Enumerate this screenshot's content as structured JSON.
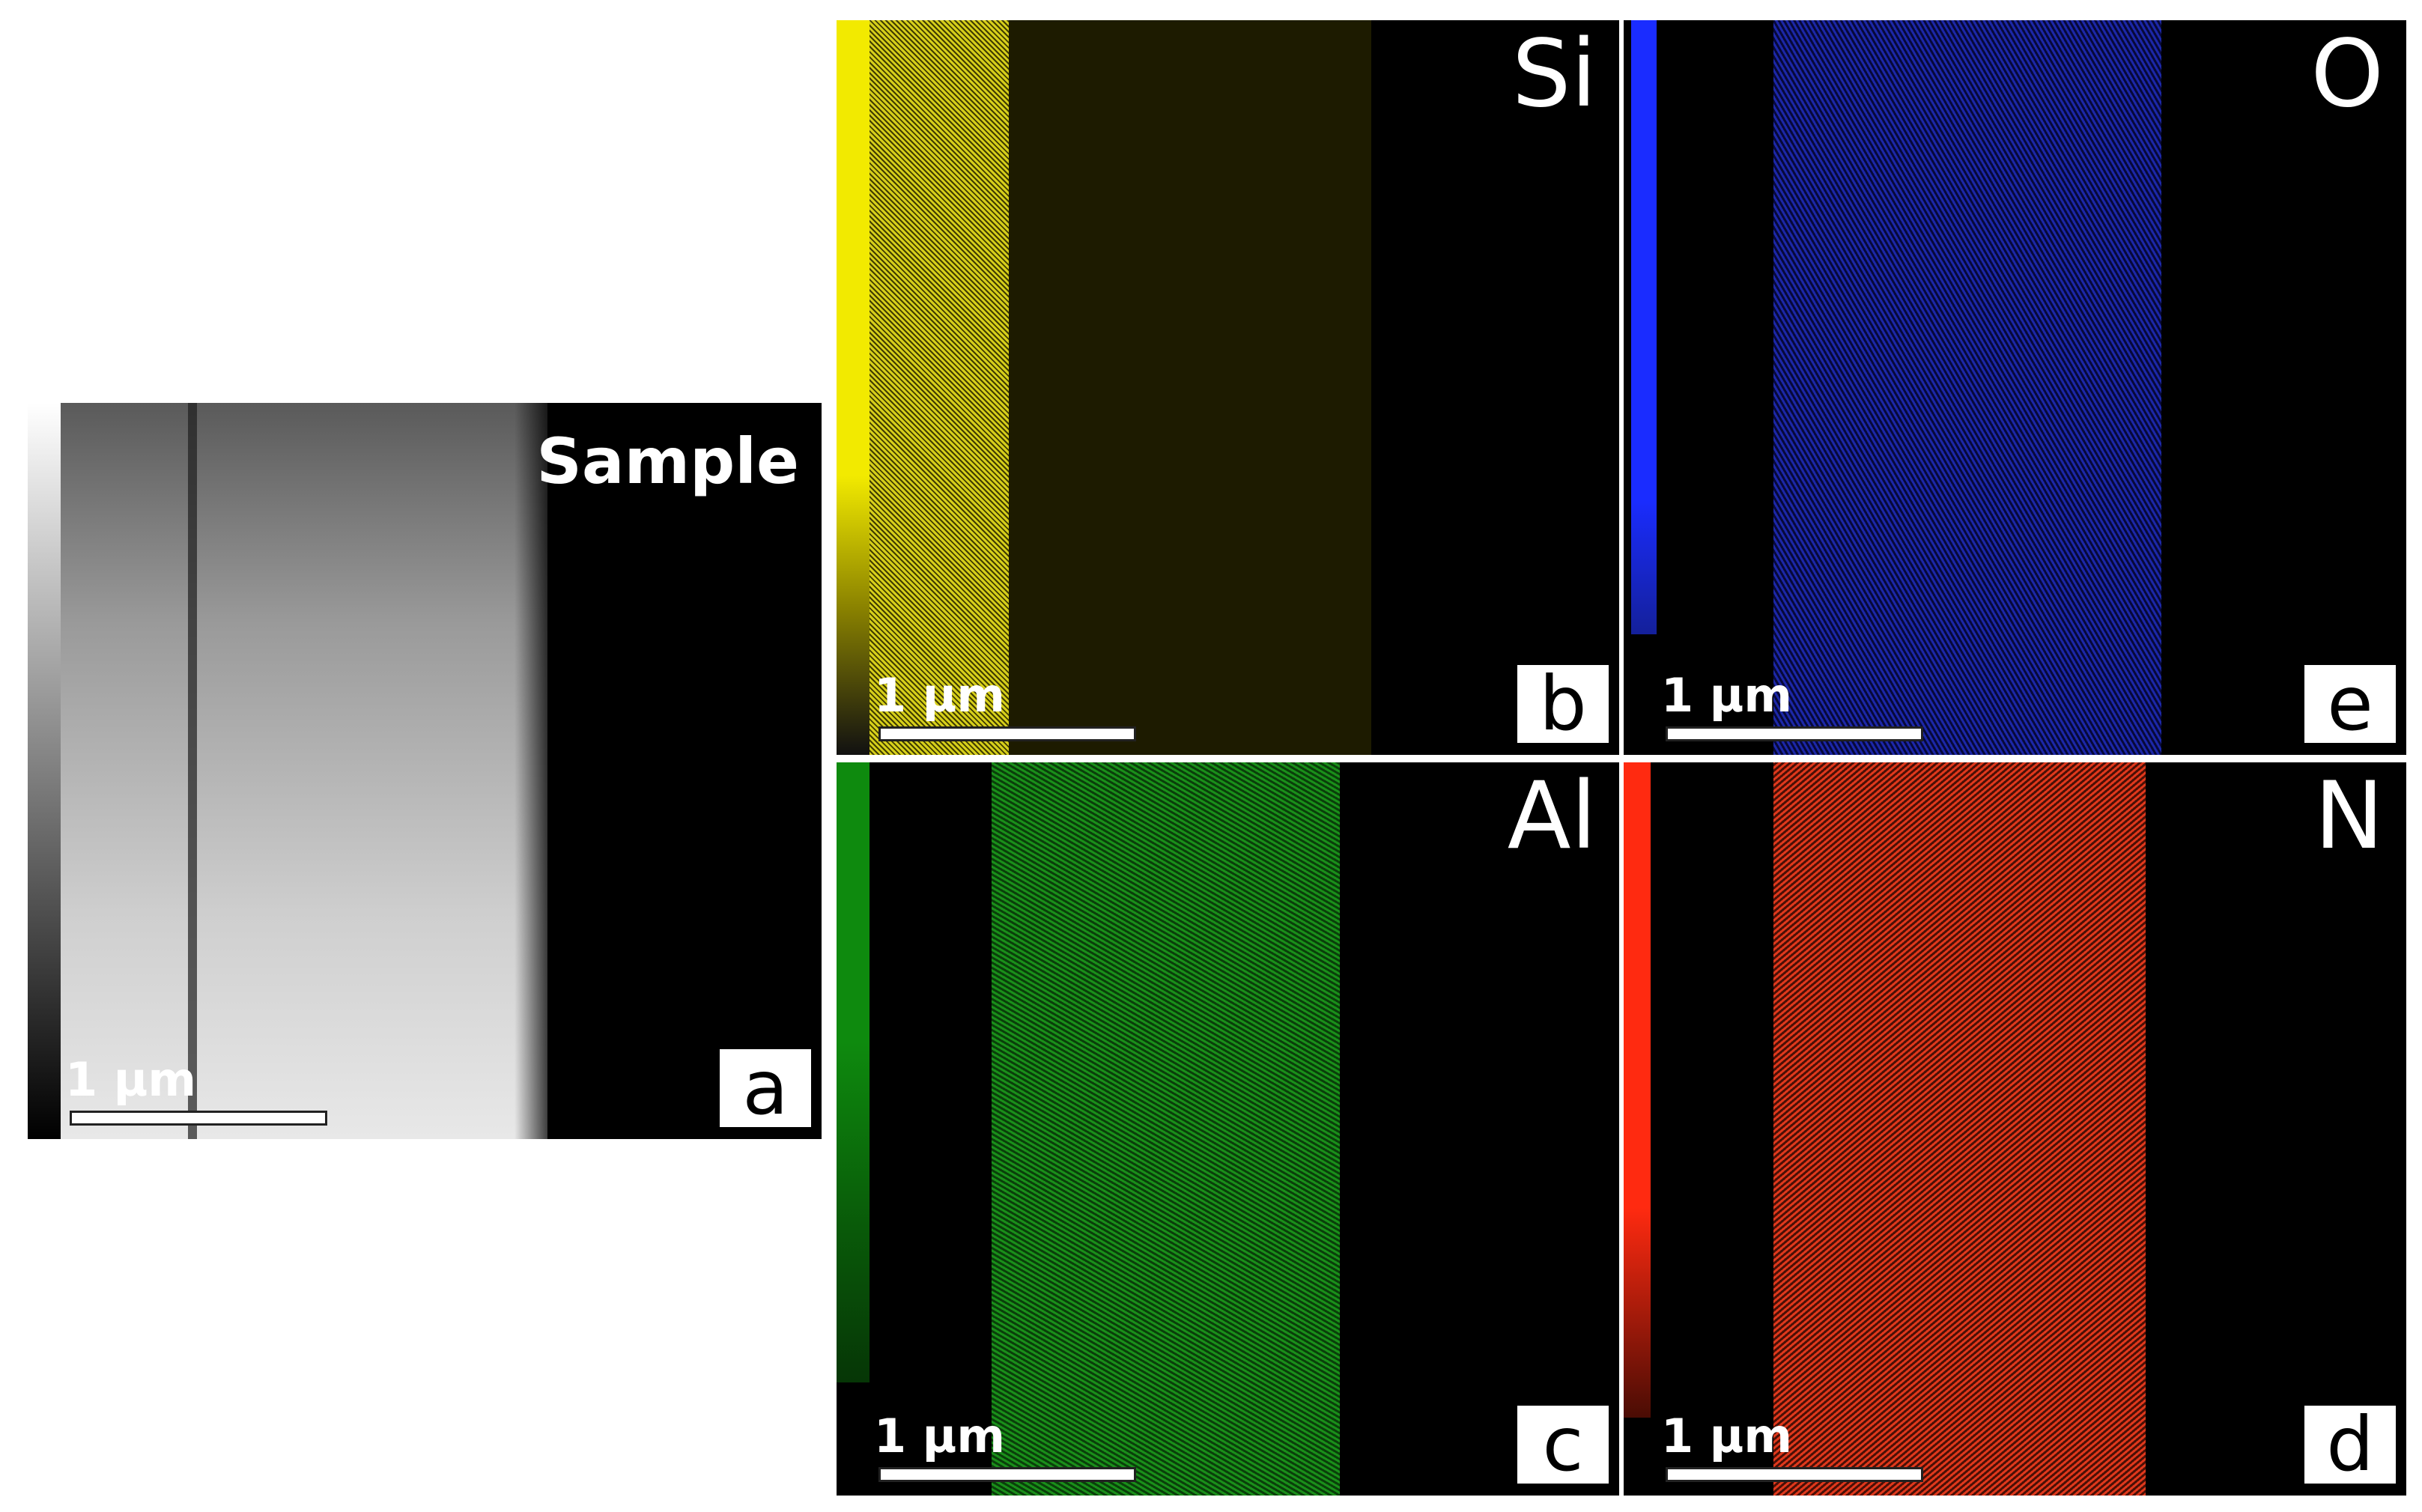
{
  "panels": [
    {
      "label": "a",
      "title": "Sample",
      "scale_bar": "1 µm"
    },
    {
      "label": "b",
      "title": "Si",
      "scale_bar": "1 µm"
    },
    {
      "label": "e",
      "title": "O",
      "scale_bar": "1 µm"
    },
    {
      "label": "c",
      "title": "Al",
      "scale_bar": "1 µm"
    },
    {
      "label": "d",
      "title": "N",
      "scale_bar": "1 µm"
    }
  ]
}
